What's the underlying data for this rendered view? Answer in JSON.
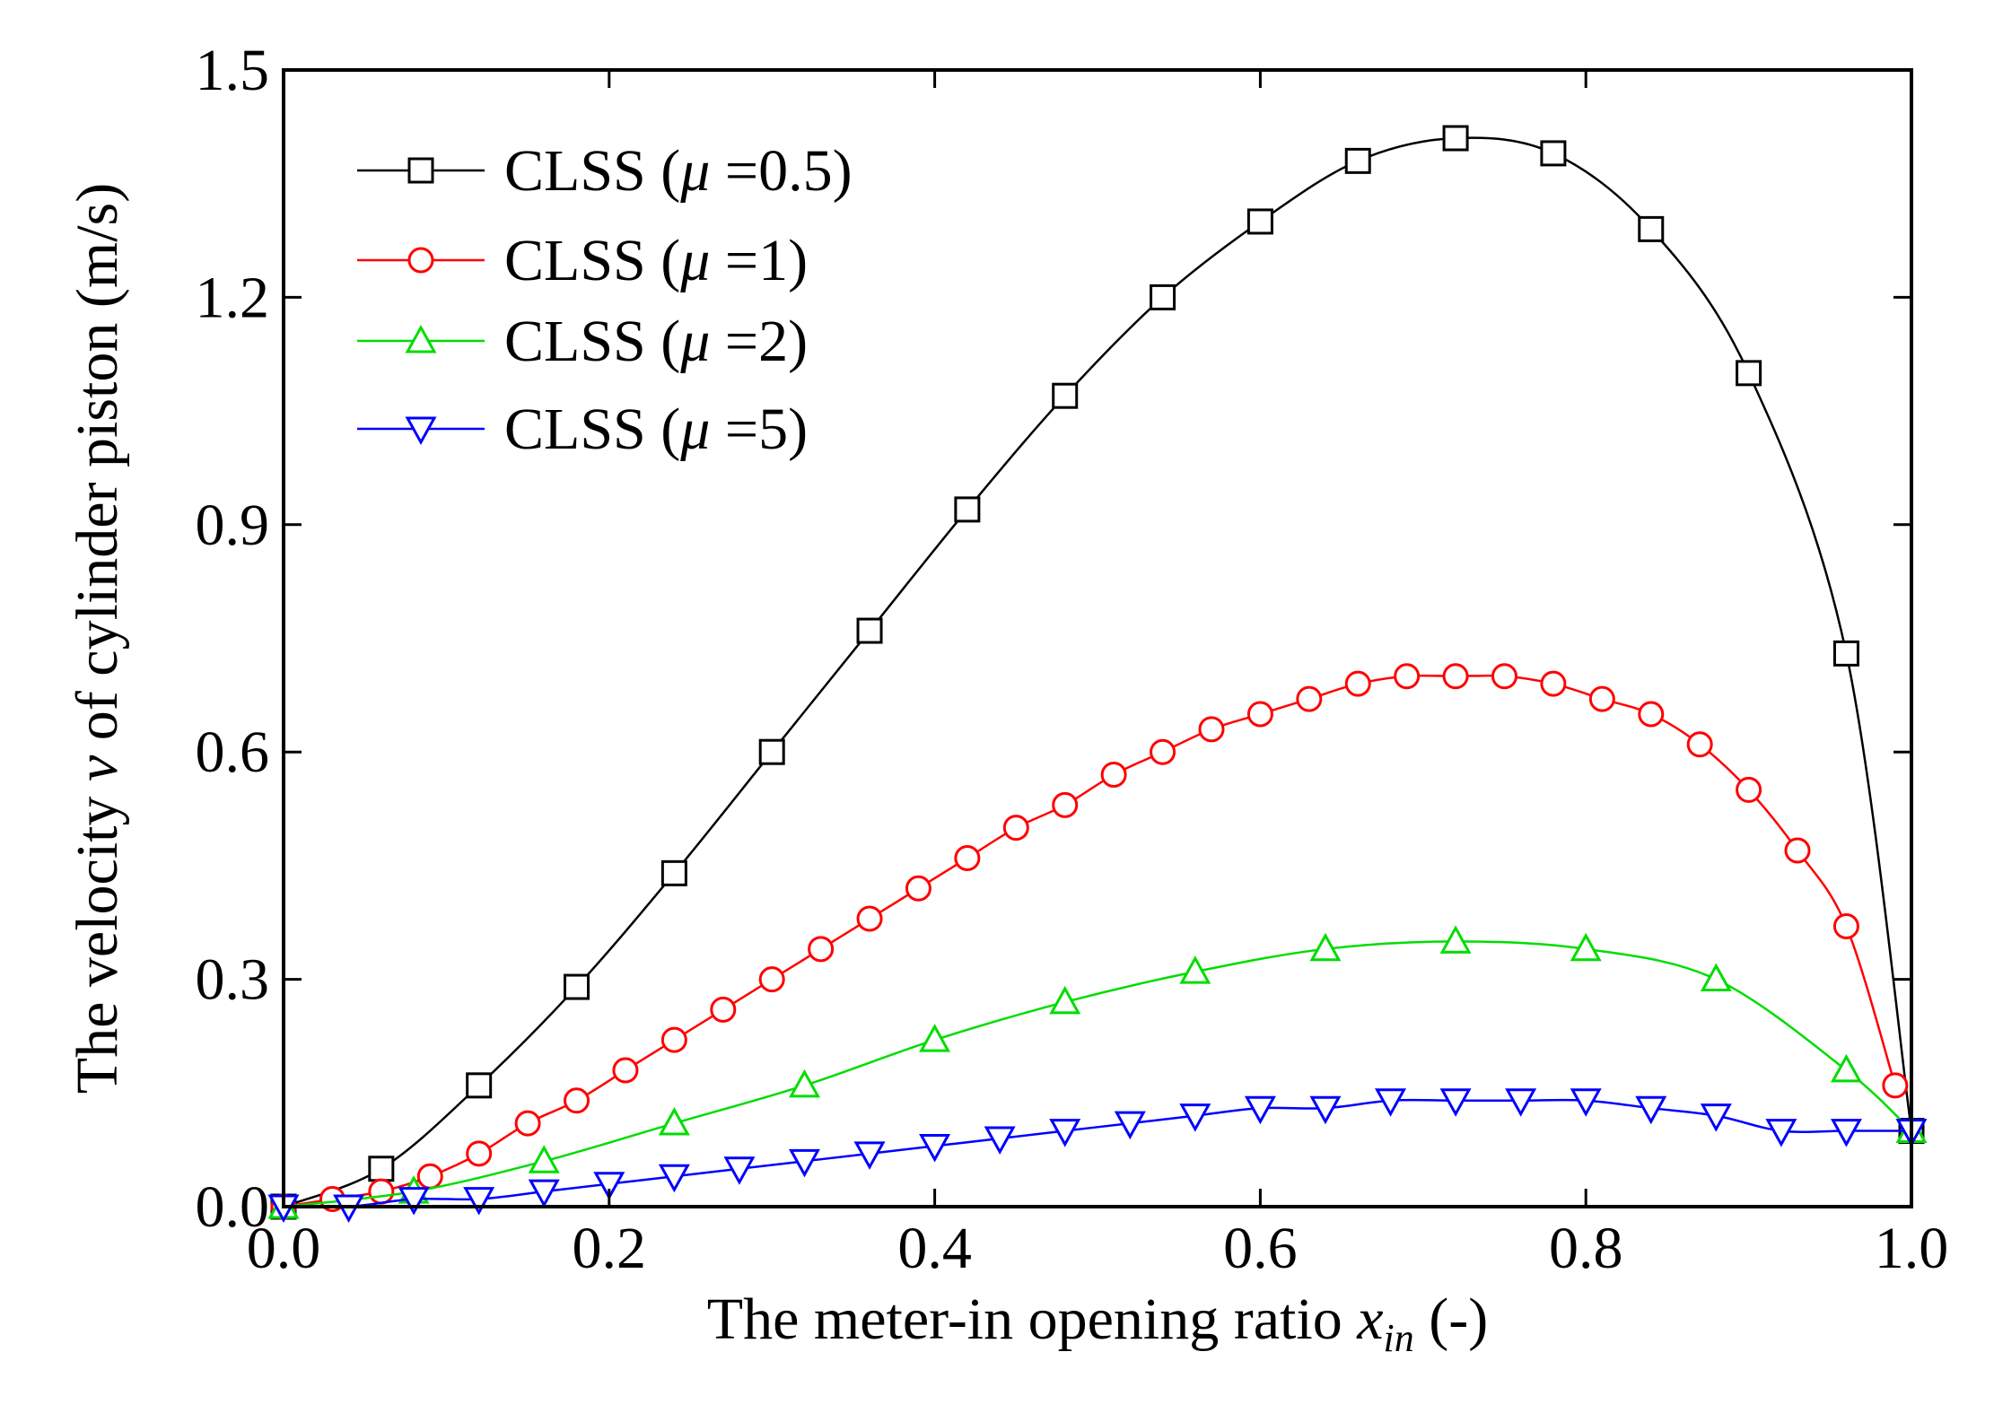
{
  "chart_data": {
    "type": "line",
    "title": "",
    "xlabel": {
      "prefix": "The meter-in opening ratio ",
      "var": "x",
      "sub": "in",
      "suffix": " (-)"
    },
    "ylabel": {
      "prefix": "The velocity ",
      "var": "v",
      "suffix": " of cylinder piston  (m/s)"
    },
    "xlim": [
      0.0,
      1.0
    ],
    "ylim": [
      0.0,
      1.5
    ],
    "xticks": [
      "0.0",
      "0.2",
      "0.4",
      "0.6",
      "0.8",
      "1.0"
    ],
    "yticks": [
      "0.0",
      "0.3",
      "0.6",
      "0.9",
      "1.2",
      "1.5"
    ],
    "grid": false,
    "legend_position": "top-left",
    "series": [
      {
        "name": "CLSS (μ =0.5)",
        "legend": {
          "prefix": "CLSS (",
          "mu": "μ",
          "suffix": " =0.5)"
        },
        "color": "#000000",
        "marker": "square",
        "x": [
          0.0,
          0.06,
          0.12,
          0.18,
          0.24,
          0.3,
          0.36,
          0.42,
          0.48,
          0.54,
          0.6,
          0.66,
          0.72,
          0.78,
          0.84,
          0.9,
          0.96,
          1.0
        ],
        "y": [
          0.0,
          0.05,
          0.16,
          0.29,
          0.44,
          0.6,
          0.76,
          0.92,
          1.07,
          1.2,
          1.3,
          1.38,
          1.41,
          1.39,
          1.29,
          1.1,
          0.73,
          0.1
        ]
      },
      {
        "name": "CLSS (μ =1)",
        "legend": {
          "prefix": "CLSS (",
          "mu": "μ",
          "suffix": " =1)"
        },
        "color": "#ff0000",
        "marker": "circle",
        "x": [
          0.0,
          0.03,
          0.06,
          0.09,
          0.12,
          0.15,
          0.18,
          0.21,
          0.24,
          0.27,
          0.3,
          0.33,
          0.36,
          0.39,
          0.42,
          0.45,
          0.48,
          0.51,
          0.54,
          0.57,
          0.6,
          0.63,
          0.66,
          0.69,
          0.72,
          0.75,
          0.78,
          0.81,
          0.84,
          0.87,
          0.9,
          0.93,
          0.96,
          0.99
        ],
        "y": [
          0.0,
          0.01,
          0.02,
          0.04,
          0.07,
          0.11,
          0.14,
          0.18,
          0.22,
          0.26,
          0.3,
          0.34,
          0.38,
          0.42,
          0.46,
          0.5,
          0.53,
          0.57,
          0.6,
          0.63,
          0.65,
          0.67,
          0.69,
          0.7,
          0.7,
          0.7,
          0.69,
          0.67,
          0.65,
          0.61,
          0.55,
          0.47,
          0.37,
          0.16
        ]
      },
      {
        "name": "CLSS (μ =2)",
        "legend": {
          "prefix": "CLSS (",
          "mu": "μ",
          "suffix": " =2)"
        },
        "color": "#00dd00",
        "marker": "triangle-up",
        "x": [
          0.0,
          0.08,
          0.16,
          0.24,
          0.32,
          0.4,
          0.48,
          0.56,
          0.64,
          0.72,
          0.8,
          0.88,
          0.96,
          1.0
        ],
        "y": [
          0.0,
          0.02,
          0.06,
          0.11,
          0.16,
          0.22,
          0.27,
          0.31,
          0.34,
          0.35,
          0.34,
          0.3,
          0.18,
          0.1
        ]
      },
      {
        "name": "CLSS (μ =5)",
        "legend": {
          "prefix": "CLSS (",
          "mu": "μ",
          "suffix": " =5)"
        },
        "color": "#0000ff",
        "marker": "triangle-down",
        "x": [
          0.0,
          0.04,
          0.08,
          0.12,
          0.16,
          0.2,
          0.24,
          0.28,
          0.32,
          0.36,
          0.4,
          0.44,
          0.48,
          0.52,
          0.56,
          0.6,
          0.64,
          0.68,
          0.72,
          0.76,
          0.8,
          0.84,
          0.88,
          0.92,
          0.96,
          1.0
        ],
        "y": [
          0.0,
          0.0,
          0.01,
          0.01,
          0.02,
          0.03,
          0.04,
          0.05,
          0.06,
          0.07,
          0.08,
          0.09,
          0.1,
          0.11,
          0.12,
          0.13,
          0.13,
          0.14,
          0.14,
          0.14,
          0.14,
          0.13,
          0.12,
          0.1,
          0.1,
          0.1
        ]
      }
    ]
  }
}
